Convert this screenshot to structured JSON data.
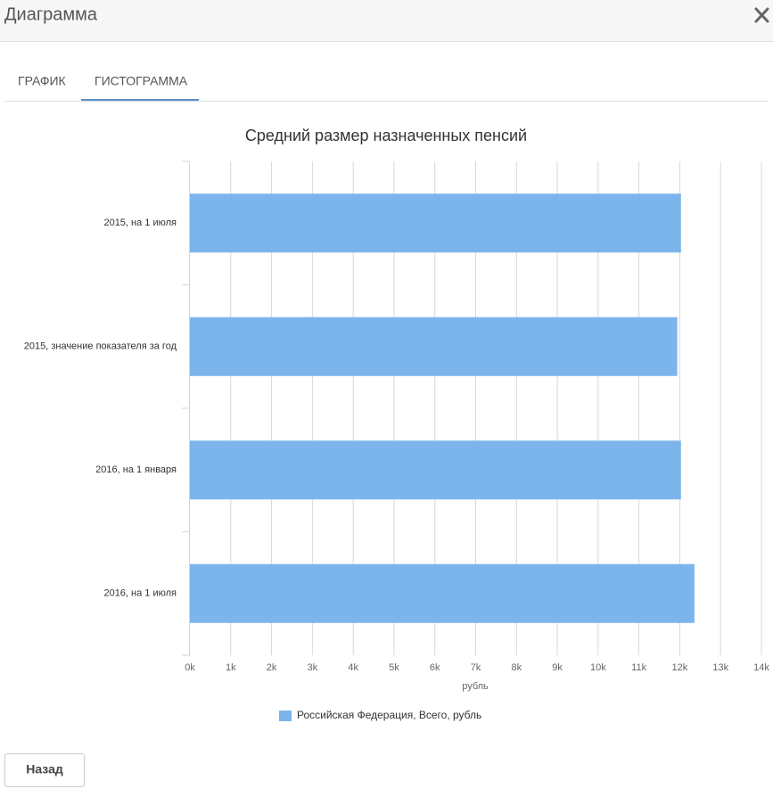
{
  "header": {
    "title": "Диаграмма"
  },
  "tabs": [
    "ГРАФИК",
    "ГИСТОГРАММА"
  ],
  "chart_data": {
    "type": "bar",
    "orientation": "horizontal",
    "title": "Средний размер назначенных пенсий",
    "categories": [
      "2015, на 1 июля",
      "2015, значение показателя за год",
      "2016, на 1 января",
      "2016, на 1 июля"
    ],
    "series": [
      {
        "name": "Российская Федерация, Всего, рубль",
        "color": "#7cb5ec",
        "values": [
          12030,
          11940,
          12030,
          12360
        ]
      }
    ],
    "xlabel": "рубль",
    "xlim": [
      0,
      14000
    ],
    "xticks": [
      {
        "value": 0,
        "label": "0k"
      },
      {
        "value": 1000,
        "label": "1k"
      },
      {
        "value": 2000,
        "label": "2k"
      },
      {
        "value": 3000,
        "label": "3k"
      },
      {
        "value": 4000,
        "label": "4k"
      },
      {
        "value": 5000,
        "label": "5k"
      },
      {
        "value": 6000,
        "label": "6k"
      },
      {
        "value": 7000,
        "label": "7k"
      },
      {
        "value": 8000,
        "label": "8k"
      },
      {
        "value": 9000,
        "label": "9k"
      },
      {
        "value": 10000,
        "label": "10k"
      },
      {
        "value": 11000,
        "label": "11k"
      },
      {
        "value": 12000,
        "label": "12k"
      },
      {
        "value": 13000,
        "label": "13k"
      },
      {
        "value": 14000,
        "label": "14k"
      }
    ],
    "grid": true
  },
  "button": {
    "label": "Назад"
  }
}
